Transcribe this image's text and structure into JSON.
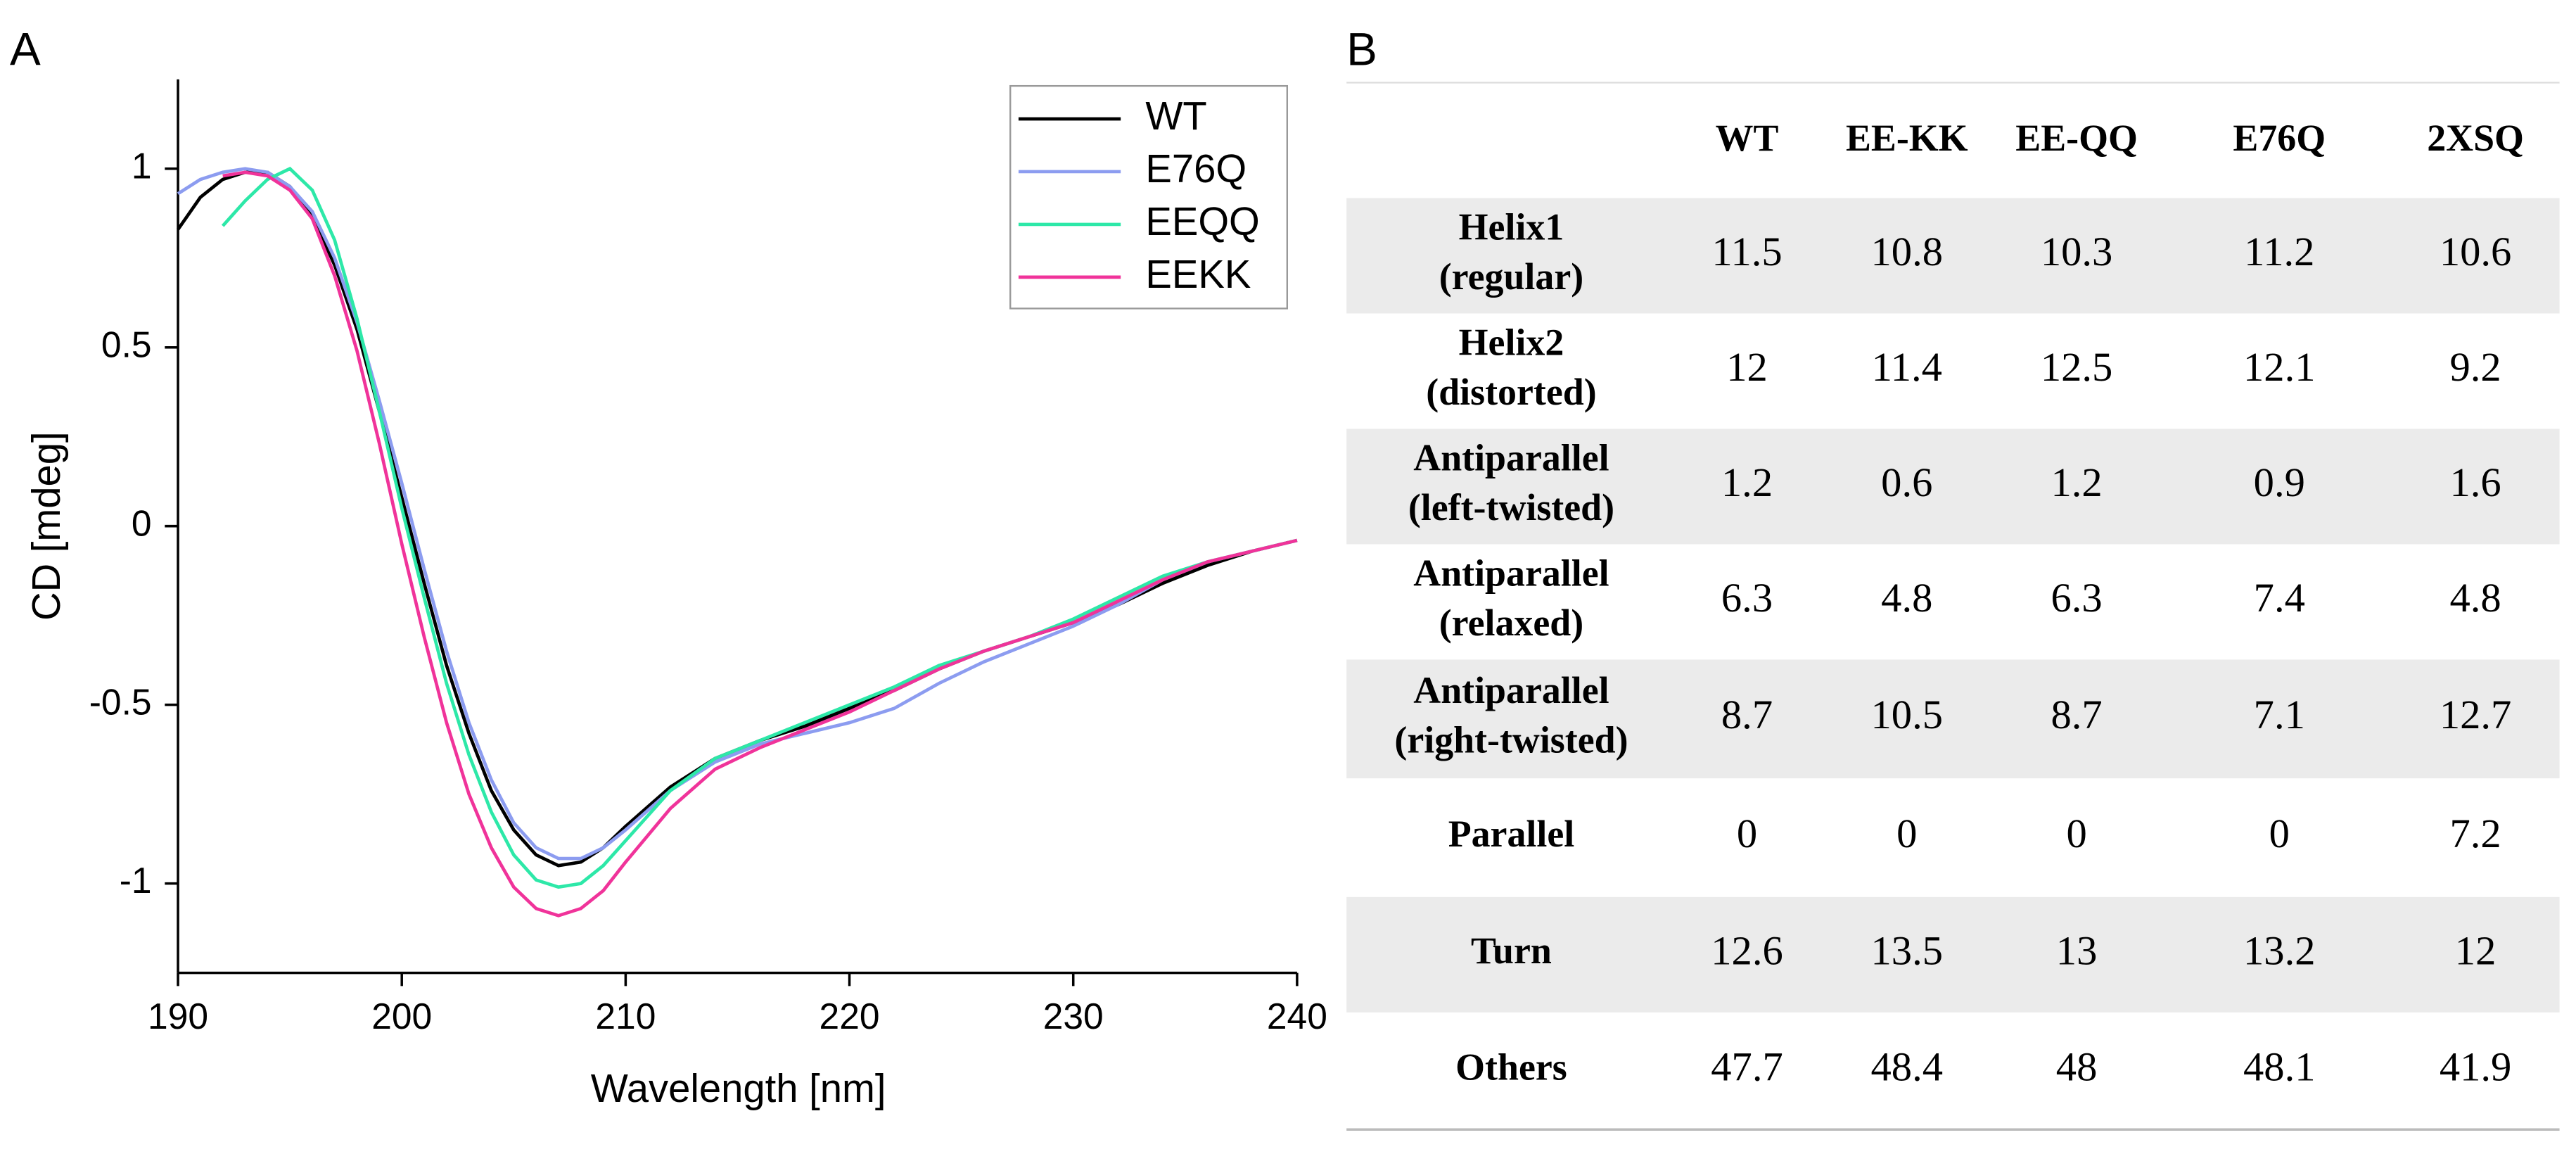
{
  "panel_a": "A",
  "panel_b": "B",
  "chart_data": {
    "type": "line",
    "x_label": "Wavelength [nm]",
    "y_label": "CD [mdeg]",
    "x": [
      190,
      191,
      192,
      193,
      194,
      195,
      196,
      197,
      198,
      199,
      200,
      201,
      202,
      203,
      204,
      205,
      206,
      207,
      208,
      209,
      210,
      212,
      214,
      216,
      218,
      220,
      222,
      224,
      226,
      228,
      230,
      232,
      234,
      236,
      238,
      240
    ],
    "series": [
      {
        "name": "WT",
        "color": "#000000",
        "values": [
          0.83,
          0.92,
          0.97,
          0.99,
          0.99,
          0.95,
          0.87,
          0.73,
          0.55,
          0.32,
          0.08,
          -0.16,
          -0.39,
          -0.58,
          -0.74,
          -0.85,
          -0.92,
          -0.95,
          -0.94,
          -0.9,
          -0.84,
          -0.73,
          -0.65,
          -0.6,
          -0.56,
          -0.51,
          -0.46,
          -0.4,
          -0.35,
          -0.31,
          -0.27,
          -0.22,
          -0.16,
          -0.11,
          -0.07,
          -0.04
        ]
      },
      {
        "name": "E76Q",
        "color": "#8c9cf0",
        "values": [
          0.93,
          0.97,
          0.99,
          1.0,
          0.99,
          0.95,
          0.88,
          0.75,
          0.57,
          0.35,
          0.12,
          -0.12,
          -0.35,
          -0.55,
          -0.71,
          -0.83,
          -0.9,
          -0.93,
          -0.93,
          -0.9,
          -0.85,
          -0.74,
          -0.66,
          -0.61,
          -0.58,
          -0.55,
          -0.51,
          -0.44,
          -0.38,
          -0.33,
          -0.28,
          -0.22,
          -0.15,
          -0.1,
          -0.07,
          -0.04
        ]
      },
      {
        "name": "EEQQ",
        "color": "#2de8a8",
        "values": [
          null,
          null,
          0.84,
          0.91,
          0.97,
          1.0,
          0.94,
          0.8,
          0.58,
          0.32,
          0.05,
          -0.2,
          -0.44,
          -0.64,
          -0.8,
          -0.92,
          -0.99,
          -1.01,
          -1.0,
          -0.95,
          -0.88,
          -0.74,
          -0.65,
          -0.6,
          -0.55,
          -0.5,
          -0.45,
          -0.39,
          -0.35,
          -0.31,
          -0.26,
          -0.2,
          -0.14,
          -0.1,
          -0.07,
          -0.04
        ]
      },
      {
        "name": "EEKK",
        "color": "#f0339a",
        "values": [
          null,
          null,
          0.98,
          0.99,
          0.98,
          0.94,
          0.86,
          0.7,
          0.49,
          0.23,
          -0.05,
          -0.31,
          -0.55,
          -0.75,
          -0.9,
          -1.01,
          -1.07,
          -1.09,
          -1.07,
          -1.02,
          -0.94,
          -0.79,
          -0.68,
          -0.62,
          -0.57,
          -0.52,
          -0.46,
          -0.4,
          -0.35,
          -0.31,
          -0.27,
          -0.21,
          -0.15,
          -0.1,
          -0.07,
          -0.04
        ]
      }
    ],
    "xlim": [
      190,
      240
    ],
    "xticks": [
      190,
      200,
      210,
      220,
      230,
      240
    ],
    "ylim": [
      -1.25,
      1.25
    ],
    "yticks": [
      -1,
      -0.5,
      0,
      0.5,
      1
    ],
    "grid": false,
    "legend": "upper right"
  },
  "table": {
    "header": [
      "WT",
      "EE-KK",
      "EE-QQ",
      "E76Q",
      "2XSQ"
    ],
    "rows": [
      {
        "label": [
          "Helix1",
          "(regular)"
        ],
        "values": [
          11.5,
          10.8,
          10.3,
          11.2,
          10.6
        ]
      },
      {
        "label": [
          "Helix2",
          "(distorted)"
        ],
        "values": [
          12,
          11.4,
          12.5,
          12.1,
          9.2
        ]
      },
      {
        "label": [
          "Antiparallel",
          "(left-twisted)"
        ],
        "values": [
          1.2,
          0.6,
          1.2,
          0.9,
          1.6
        ]
      },
      {
        "label": [
          "Antiparallel",
          "(relaxed)"
        ],
        "values": [
          6.3,
          4.8,
          6.3,
          7.4,
          4.8
        ]
      },
      {
        "label": [
          "Antiparallel",
          "(right-twisted)"
        ],
        "values": [
          8.7,
          10.5,
          8.7,
          7.1,
          12.7
        ]
      },
      {
        "label": [
          "Parallel"
        ],
        "values": [
          0,
          0,
          0,
          0,
          7.2
        ]
      },
      {
        "label": [
          "Turn"
        ],
        "values": [
          12.6,
          13.5,
          13,
          13.2,
          12
        ]
      },
      {
        "label": [
          "Others"
        ],
        "values": [
          47.7,
          48.4,
          48,
          48.1,
          41.9
        ]
      }
    ]
  }
}
